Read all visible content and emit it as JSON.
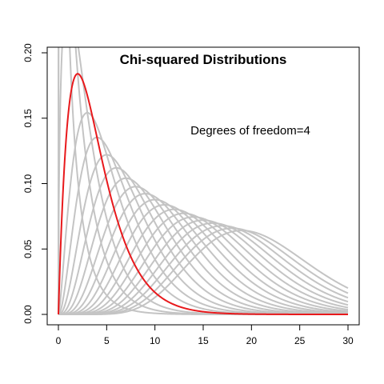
{
  "chart_data": {
    "type": "line",
    "title": "Chi-squared Distributions",
    "annotation": "Degrees of freedom=4",
    "xlabel": "",
    "ylabel": "",
    "xlim": [
      0,
      30
    ],
    "ylim": [
      0,
      0.2
    ],
    "x_ticks": [
      0,
      5,
      10,
      15,
      20,
      25,
      30
    ],
    "x_tick_labels": [
      "0",
      "5",
      "10",
      "15",
      "20",
      "25",
      "30"
    ],
    "y_ticks": [
      0,
      0.05,
      0.1,
      0.15,
      0.2
    ],
    "y_tick_labels": [
      "0.00",
      "0.05",
      "0.10",
      "0.15",
      "0.20"
    ],
    "grid": false,
    "degrees_of_freedom": [
      1,
      2,
      3,
      4,
      5,
      6,
      7,
      8,
      9,
      10,
      11,
      12,
      13,
      14,
      15,
      16,
      17,
      18,
      19,
      20,
      21
    ],
    "highlighted_df": 4,
    "colors": {
      "highlight": "#e8191c",
      "background_curves": "#c4c4c4",
      "axis": "#000000"
    }
  }
}
